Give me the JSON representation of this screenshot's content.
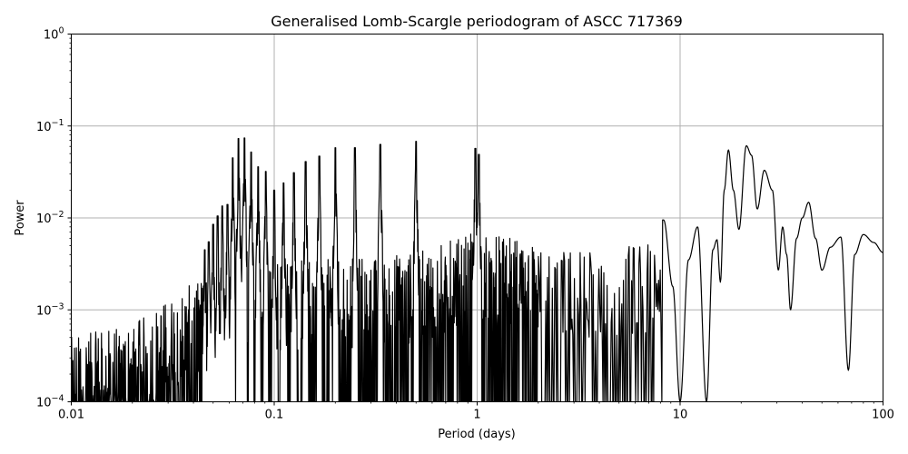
{
  "chart_data": {
    "type": "line",
    "title": "Generalised Lomb-Scargle periodogram of ASCC 717369",
    "xlabel": "Period (days)",
    "ylabel": "Power",
    "xscale": "log",
    "yscale": "log",
    "xlim": [
      0.01,
      100
    ],
    "ylim": [
      0.0001,
      1
    ],
    "grid": true,
    "legend": null,
    "x_ticks": [
      "0.01",
      "0.1",
      "1",
      "10",
      "100"
    ],
    "y_ticks": [
      {
        "base": "10",
        "exp": "0"
      },
      {
        "base": "10",
        "exp": "−1"
      },
      {
        "base": "10",
        "exp": "−2"
      },
      {
        "base": "10",
        "exp": "−3"
      },
      {
        "base": "10",
        "exp": "−4"
      }
    ],
    "line_color": "#000000",
    "grid_color": "#b0b0b0",
    "alias_peaks": [
      {
        "period": 0.0455,
        "power": 0.0045
      },
      {
        "period": 0.0476,
        "power": 0.0055
      },
      {
        "period": 0.05,
        "power": 0.0085
      },
      {
        "period": 0.0526,
        "power": 0.0105
      },
      {
        "period": 0.0555,
        "power": 0.0135
      },
      {
        "period": 0.0588,
        "power": 0.014
      },
      {
        "period": 0.0625,
        "power": 0.045
      },
      {
        "period": 0.0667,
        "power": 0.073
      },
      {
        "period": 0.0714,
        "power": 0.074
      },
      {
        "period": 0.0769,
        "power": 0.052
      },
      {
        "period": 0.0833,
        "power": 0.036
      },
      {
        "period": 0.0909,
        "power": 0.032
      },
      {
        "period": 0.1,
        "power": 0.02
      },
      {
        "period": 0.1111,
        "power": 0.024
      },
      {
        "period": 0.125,
        "power": 0.031
      },
      {
        "period": 0.1429,
        "power": 0.041
      },
      {
        "period": 0.1667,
        "power": 0.047
      },
      {
        "period": 0.2,
        "power": 0.058
      },
      {
        "period": 0.25,
        "power": 0.058
      },
      {
        "period": 0.3333,
        "power": 0.063
      },
      {
        "period": 0.5,
        "power": 0.068
      },
      {
        "period": 0.98,
        "power": 0.057
      },
      {
        "period": 1.02,
        "power": 0.049
      }
    ],
    "long_period_curve": [
      {
        "period": 8.3,
        "power": 0.0095
      },
      {
        "period": 9.2,
        "power": 0.0018
      },
      {
        "period": 10.0,
        "power": 0.0001
      },
      {
        "period": 11.0,
        "power": 0.0035
      },
      {
        "period": 12.2,
        "power": 0.008
      },
      {
        "period": 13.5,
        "power": 0.0001
      },
      {
        "period": 14.5,
        "power": 0.0045
      },
      {
        "period": 15.2,
        "power": 0.0058
      },
      {
        "period": 15.8,
        "power": 0.002
      },
      {
        "period": 16.5,
        "power": 0.02
      },
      {
        "period": 17.3,
        "power": 0.055
      },
      {
        "period": 18.3,
        "power": 0.02
      },
      {
        "period": 19.5,
        "power": 0.0075
      },
      {
        "period": 21.2,
        "power": 0.061
      },
      {
        "period": 22.5,
        "power": 0.048
      },
      {
        "period": 24.0,
        "power": 0.0125
      },
      {
        "period": 26.0,
        "power": 0.033
      },
      {
        "period": 28.5,
        "power": 0.02
      },
      {
        "period": 30.5,
        "power": 0.0027
      },
      {
        "period": 32.0,
        "power": 0.008
      },
      {
        "period": 33.5,
        "power": 0.004
      },
      {
        "period": 35.0,
        "power": 0.001
      },
      {
        "period": 37.5,
        "power": 0.006
      },
      {
        "period": 40.0,
        "power": 0.01
      },
      {
        "period": 43.0,
        "power": 0.0148
      },
      {
        "period": 46.5,
        "power": 0.006
      },
      {
        "period": 50.0,
        "power": 0.0027
      },
      {
        "period": 55.0,
        "power": 0.0048
      },
      {
        "period": 62.0,
        "power": 0.0062
      },
      {
        "period": 67.5,
        "power": 0.00022
      },
      {
        "period": 72.5,
        "power": 0.004
      },
      {
        "period": 80.0,
        "power": 0.0066
      },
      {
        "period": 90.0,
        "power": 0.0054
      },
      {
        "period": 100.0,
        "power": 0.0042
      }
    ],
    "noise_floor": [
      {
        "period": 0.01,
        "power": 0.00018
      },
      {
        "period": 0.02,
        "power": 0.00025
      },
      {
        "period": 0.04,
        "power": 0.0007
      },
      {
        "period": 0.07,
        "power": 0.0012
      },
      {
        "period": 0.2,
        "power": 0.0013
      },
      {
        "period": 0.5,
        "power": 0.0015
      },
      {
        "period": 1.0,
        "power": 0.0025
      },
      {
        "period": 3.0,
        "power": 0.0016
      },
      {
        "period": 8.0,
        "power": 0.002
      }
    ]
  }
}
